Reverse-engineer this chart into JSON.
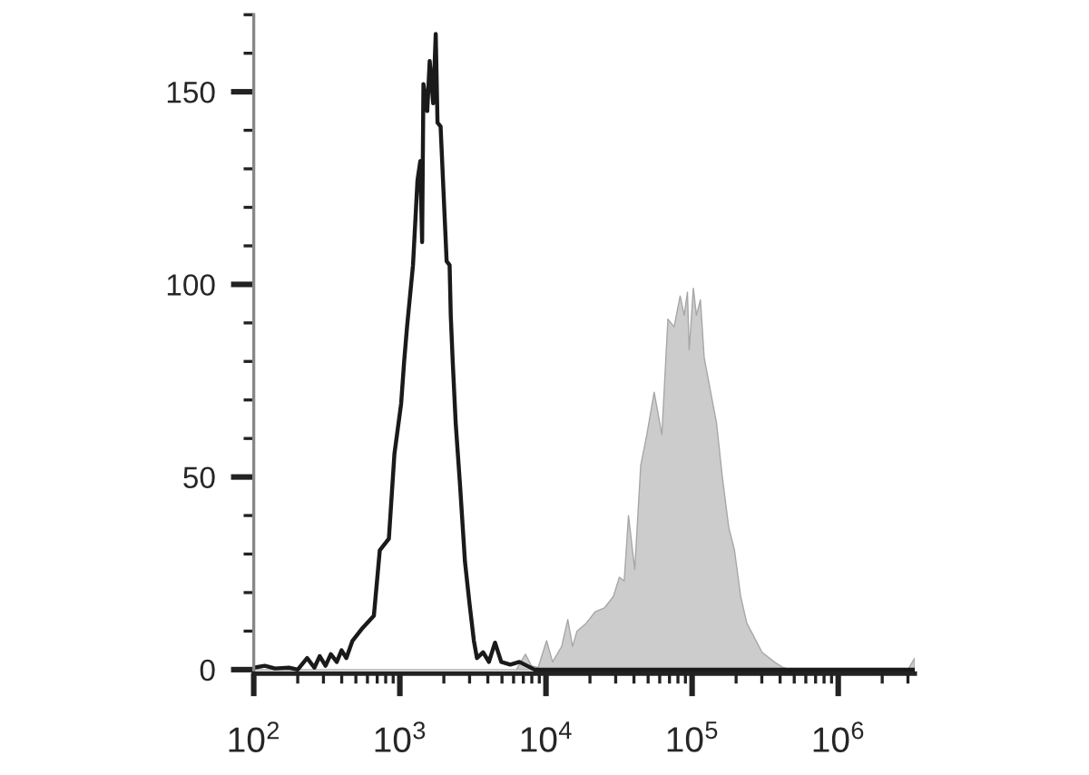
{
  "chart_data": {
    "type": "line",
    "log": "x",
    "xlim": [
      100,
      3340000
    ],
    "xticks": [
      {
        "value": 100,
        "label": "10$^{2}$"
      },
      {
        "value": 200,
        "label": null
      },
      {
        "value": 300,
        "label": null
      },
      {
        "value": 400,
        "label": null
      },
      {
        "value": 500,
        "label": null
      },
      {
        "value": 600,
        "label": null
      },
      {
        "value": 700,
        "label": null
      },
      {
        "value": 800,
        "label": null
      },
      {
        "value": 900,
        "label": null
      },
      {
        "value": 1000,
        "label": "10$^{3}$"
      },
      {
        "value": 2000,
        "label": null
      },
      {
        "value": 3000,
        "label": null
      },
      {
        "value": 4000,
        "label": null
      },
      {
        "value": 5000,
        "label": null
      },
      {
        "value": 6000,
        "label": null
      },
      {
        "value": 7000,
        "label": null
      },
      {
        "value": 8000,
        "label": null
      },
      {
        "value": 9000,
        "label": null
      },
      {
        "value": 10000,
        "label": "10$^{4}$"
      },
      {
        "value": 20000,
        "label": null
      },
      {
        "value": 30000,
        "label": null
      },
      {
        "value": 40000,
        "label": null
      },
      {
        "value": 50000,
        "label": null
      },
      {
        "value": 60000,
        "label": null
      },
      {
        "value": 70000,
        "label": null
      },
      {
        "value": 80000,
        "label": null
      },
      {
        "value": 90000,
        "label": null
      },
      {
        "value": 100000,
        "label": "10$^{5}$"
      },
      {
        "value": 200000,
        "label": null
      },
      {
        "value": 300000,
        "label": null
      },
      {
        "value": 400000,
        "label": null
      },
      {
        "value": 500000,
        "label": null
      },
      {
        "value": 600000,
        "label": null
      },
      {
        "value": 700000,
        "label": null
      },
      {
        "value": 800000,
        "label": null
      },
      {
        "value": 900000,
        "label": null
      },
      {
        "value": 1000000,
        "label": "10$^{6}$"
      },
      {
        "value": 2000000,
        "label": null
      },
      {
        "value": 3000000,
        "label": null
      }
    ],
    "ylim": [
      -1,
      170
    ],
    "yticks": [
      0,
      {
        "value": 10,
        "label": null
      },
      {
        "value": 20,
        "label": null
      },
      {
        "value": 30,
        "label": null
      },
      {
        "value": 40,
        "label": null
      },
      50,
      {
        "value": 60,
        "label": null
      },
      {
        "value": 70,
        "label": null
      },
      {
        "value": 80,
        "label": null
      },
      {
        "value": 90,
        "label": null
      },
      100,
      {
        "value": 110,
        "label": null
      },
      {
        "value": 120,
        "label": null
      },
      {
        "value": 130,
        "label": null
      },
      {
        "value": 140,
        "label": null
      },
      150,
      {
        "value": 160,
        "label": null
      },
      {
        "value": 170,
        "label": null
      }
    ],
    "series": [
      {
        "type": "area",
        "color": "#cccccc",
        "x": [
          100,
          6270,
          7230,
          7950,
          8830,
          10100,
          11100,
          12800,
          14100,
          15200,
          16300,
          18800,
          21700,
          25100,
          28900,
          31800,
          34300,
          36700,
          40500,
          44500,
          49000,
          55000,
          62100,
          68300,
          75300,
          82800,
          88300,
          92900,
          95500,
          102000,
          107000,
          114000,
          121000,
          134000,
          147000,
          161000,
          178000,
          195000,
          215000,
          237000,
          261000,
          301000,
          365000,
          421000,
          475000,
          3000000,
          3340000
        ],
        "values": [
          0,
          0,
          4,
          1,
          0.5,
          7.5,
          2,
          6,
          13,
          6,
          10,
          12,
          15,
          16,
          19,
          24,
          23,
          40,
          26,
          53,
          61,
          72,
          61,
          91,
          89,
          97,
          92,
          98,
          83,
          99,
          92,
          96,
          81,
          72,
          64,
          50,
          37,
          31,
          19,
          12,
          9,
          4.5,
          2,
          0.5,
          0,
          0,
          3
        ]
      },
      {
        "color": "#1a1a1a",
        "x": [
          100,
          119,
          140,
          174,
          200,
          232,
          260,
          283,
          310,
          337,
          370,
          399,
          430,
          474,
          547,
          664,
          729,
          841,
          918,
          1020,
          1070,
          1120,
          1230,
          1320,
          1380,
          1420,
          1450,
          1540,
          1600,
          1690,
          1760,
          1810,
          1900,
          1990,
          2090,
          2190,
          2230,
          2300,
          2410,
          2580,
          2790,
          3000,
          3210,
          3370,
          3710,
          4070,
          4480,
          4940,
          5700,
          6580,
          8360,
          3340000
        ],
        "values": [
          0.5,
          1,
          0.3,
          0.5,
          0,
          3,
          0.5,
          3.5,
          1,
          4,
          2,
          5,
          3,
          7.5,
          10.5,
          14,
          31,
          34,
          56,
          69,
          80,
          89,
          105,
          127,
          132,
          111,
          152,
          145,
          158,
          147,
          165,
          142,
          141,
          124,
          106,
          105,
          92,
          80,
          64,
          48,
          28,
          17,
          7.5,
          3,
          4.5,
          2,
          7,
          2,
          1.3,
          2,
          0,
          0
        ]
      }
    ]
  }
}
